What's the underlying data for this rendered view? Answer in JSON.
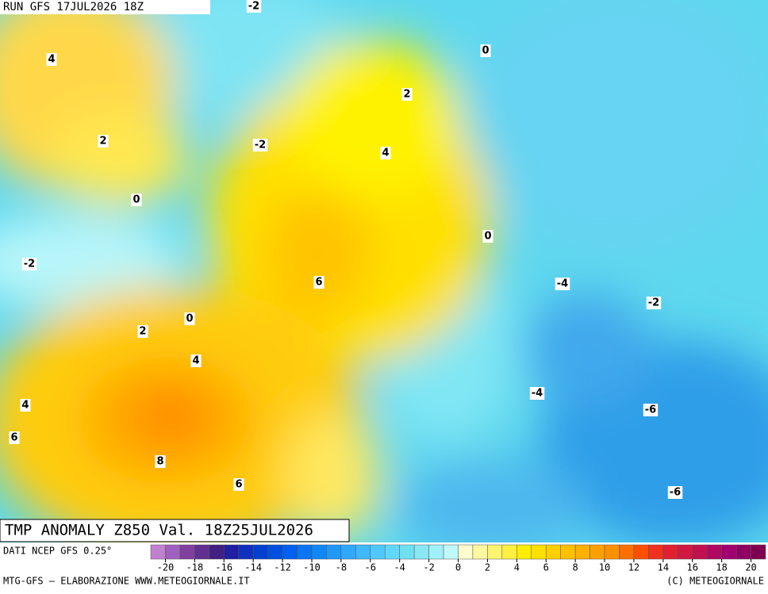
{
  "header": {
    "run": "RUN GFS 17JUL2026 18Z"
  },
  "map": {
    "title": "TMP ANOMALY Z850 Val. 18Z25JUL2026",
    "contour_labels": [
      -2,
      4,
      0,
      2,
      2,
      -2,
      4,
      0,
      0,
      -2,
      6,
      -4,
      -2,
      0,
      2,
      4,
      -4,
      4,
      -6,
      6,
      8,
      6,
      -6
    ]
  },
  "footer": {
    "source": "DATI NCEP GFS 0.25°",
    "credit": "MTG-GFS — ELABORAZIONE WWW.METEOGIORNALE.IT",
    "copyright": "(C) METEOGIORNALE"
  },
  "colorbar": {
    "ticks": [
      -20,
      -18,
      -16,
      -14,
      -12,
      -10,
      -8,
      -6,
      -4,
      -2,
      0,
      2,
      4,
      6,
      8,
      10,
      12,
      14,
      16,
      18,
      20
    ],
    "colors": [
      "#c080d0",
      "#a060c0",
      "#8040a0",
      "#603090",
      "#402080",
      "#2020a0",
      "#1030c0",
      "#0040d0",
      "#0050e0",
      "#0060f0",
      "#0a75f5",
      "#1088f8",
      "#2098fa",
      "#30a8fb",
      "#40b8fc",
      "#50c8fd",
      "#60d8fe",
      "#70e0f0",
      "#88e8f4",
      "#a0f0f8",
      "#c0f8fc",
      "#fffcd0",
      "#fff8a0",
      "#fff470",
      "#fff040",
      "#ffee00",
      "#ffe000",
      "#ffd000",
      "#ffc000",
      "#ffb000",
      "#ffa000",
      "#ff9000",
      "#ff7000",
      "#ff5000",
      "#f03020",
      "#e02030",
      "#d01840",
      "#c01050",
      "#b00860",
      "#a00070",
      "#900060",
      "#800050"
    ]
  }
}
